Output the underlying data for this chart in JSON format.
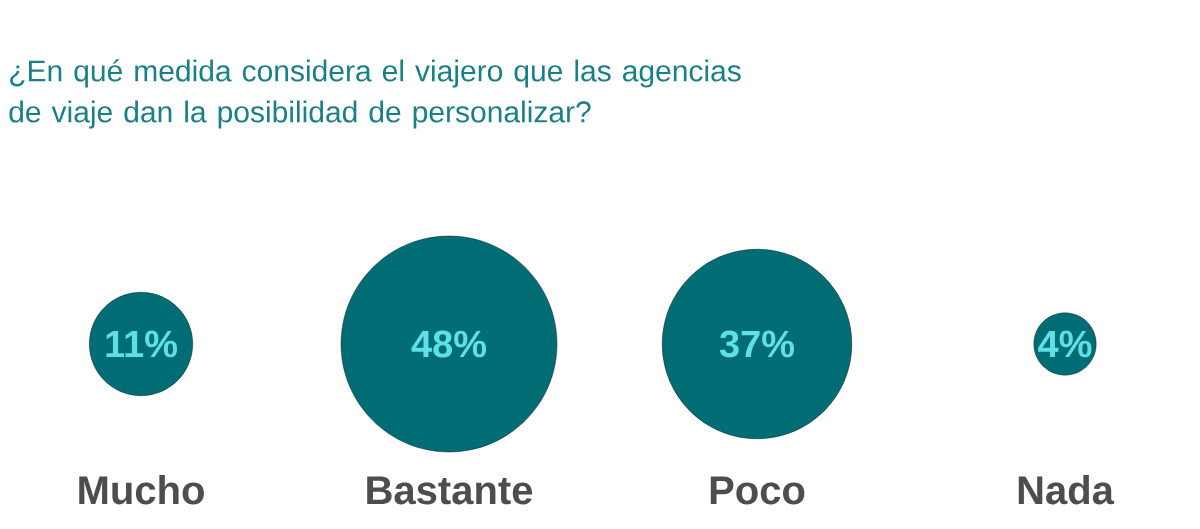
{
  "chart_data": {
    "type": "other",
    "title": "¿En qué medida considera el viajero que las agencias de viaje dan la posibilidad de personalizar?",
    "categories": [
      "Mucho",
      "Bastante",
      "Poco",
      "Nada"
    ],
    "values": [
      11,
      48,
      37,
      4
    ],
    "value_labels": [
      "11%",
      "48%",
      "37%",
      "4%"
    ],
    "color": "#006d75"
  }
}
